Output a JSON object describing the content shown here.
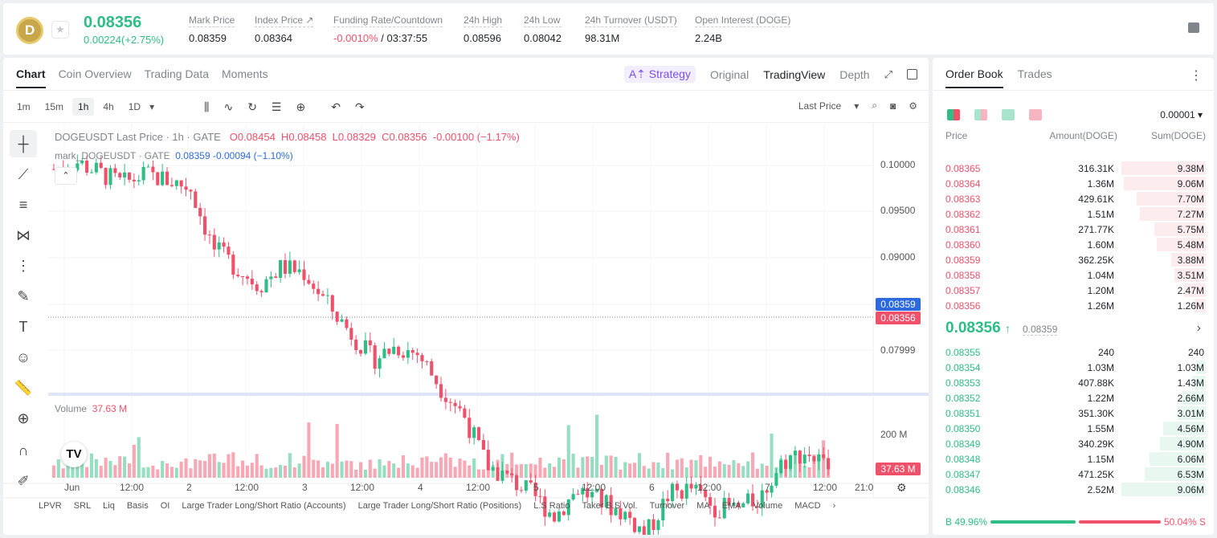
{
  "ticker": {
    "last_price": "0.08356",
    "change": "0.00224(+2.75%)",
    "stats": [
      {
        "label": "Mark Price",
        "value": "0.08359"
      },
      {
        "label": "Index Price ↗",
        "value": "0.08364"
      },
      {
        "label": "Funding Rate/Countdown",
        "value_red": "-0.0010%",
        "value": " / 03:37:55"
      },
      {
        "label": "24h High",
        "value": "0.08596"
      },
      {
        "label": "24h Low",
        "value": "0.08042"
      },
      {
        "label": "24h Turnover (USDT)",
        "value": "98.31M"
      },
      {
        "label": "Open Interest (DOGE)",
        "value": "2.24B"
      }
    ]
  },
  "chart_tabs": [
    "Chart",
    "Coin Overview",
    "Trading Data",
    "Moments"
  ],
  "view_tabs": {
    "strategy": "A⇡ Strategy",
    "original": "Original",
    "tradingview": "TradingView",
    "depth": "Depth"
  },
  "intervals": [
    "1m",
    "15m",
    "1h",
    "4h",
    "1D"
  ],
  "price_type": "Last Price",
  "legend": {
    "symbol": "DOGEUSDT Last Price · 1h · GATE",
    "o": "O0.08454",
    "h": "H0.08458",
    "l": "L0.08329",
    "c": "C0.08356",
    "chg": "-0.00100 (−1.17%)",
    "mark_label": "mark_DOGEUSDT · GATE",
    "mark_values": "0.08359  -0.00094  (−1.10%)"
  },
  "price_axis": [
    "0.10000",
    "0.09500",
    "0.09000",
    "0.07999"
  ],
  "tags": {
    "mark": "0.08359",
    "last": "0.08356",
    "volume": "37.63 M"
  },
  "volume": {
    "label": "Volume",
    "value": "37.63 M",
    "axis": "200 M"
  },
  "time_axis": [
    "Jun",
    "12:00",
    "2",
    "12:00",
    "3",
    "12:00",
    "4",
    "12:00",
    "5",
    "12:00",
    "6",
    "12:00",
    "7",
    "12:00",
    "21:0"
  ],
  "indicators": [
    "LPVR",
    "SRL",
    "Liq",
    "Basis",
    "OI",
    "Large Trader Long/Short Ratio (Accounts)",
    "Large Trader Long/Short Ratio (Positions)",
    "L.S Ratio",
    "Taker B.S Vol.",
    "Turnover",
    "MA",
    "EMA",
    "Volume",
    "MACD"
  ],
  "tv_logo": "TV",
  "order_book": {
    "tabs": [
      "Order Book",
      "Trades"
    ],
    "precision": "0.00001",
    "columns": {
      "price": "Price",
      "amount": "Amount(DOGE)",
      "sum": "Sum(DOGE)"
    },
    "asks": [
      {
        "price": "0.08365",
        "amount": "316.31K",
        "sum": "9.38M",
        "depth": 1.0
      },
      {
        "price": "0.08364",
        "amount": "1.36M",
        "sum": "9.06M",
        "depth": 0.97
      },
      {
        "price": "0.08363",
        "amount": "429.61K",
        "sum": "7.70M",
        "depth": 0.82
      },
      {
        "price": "0.08362",
        "amount": "1.51M",
        "sum": "7.27M",
        "depth": 0.78
      },
      {
        "price": "0.08361",
        "amount": "271.77K",
        "sum": "5.75M",
        "depth": 0.61
      },
      {
        "price": "0.08360",
        "amount": "1.60M",
        "sum": "5.48M",
        "depth": 0.58
      },
      {
        "price": "0.08359",
        "amount": "362.25K",
        "sum": "3.88M",
        "depth": 0.41
      },
      {
        "price": "0.08358",
        "amount": "1.04M",
        "sum": "3.51M",
        "depth": 0.37
      },
      {
        "price": "0.08357",
        "amount": "1.20M",
        "sum": "2.47M",
        "depth": 0.26
      },
      {
        "price": "0.08356",
        "amount": "1.26M",
        "sum": "1.26M",
        "depth": 0.13
      }
    ],
    "mid": {
      "price": "0.08356",
      "arrow": "↑",
      "mark": "0.08359"
    },
    "bids": [
      {
        "price": "0.08355",
        "amount": "240",
        "sum": "240",
        "depth": 0.0
      },
      {
        "price": "0.08354",
        "amount": "1.03M",
        "sum": "1.03M",
        "depth": 0.11
      },
      {
        "price": "0.08353",
        "amount": "407.88K",
        "sum": "1.43M",
        "depth": 0.16
      },
      {
        "price": "0.08352",
        "amount": "1.22M",
        "sum": "2.66M",
        "depth": 0.29
      },
      {
        "price": "0.08351",
        "amount": "351.30K",
        "sum": "3.01M",
        "depth": 0.33
      },
      {
        "price": "0.08350",
        "amount": "1.55M",
        "sum": "4.56M",
        "depth": 0.5
      },
      {
        "price": "0.08349",
        "amount": "340.29K",
        "sum": "4.90M",
        "depth": 0.54
      },
      {
        "price": "0.08348",
        "amount": "1.15M",
        "sum": "6.06M",
        "depth": 0.67
      },
      {
        "price": "0.08347",
        "amount": "471.25K",
        "sum": "6.53M",
        "depth": 0.72
      },
      {
        "price": "0.08346",
        "amount": "2.52M",
        "sum": "9.06M",
        "depth": 1.0
      }
    ],
    "buy_ratio": "B  49.96%",
    "sell_ratio": "50.04%  S"
  },
  "colors": {
    "up": "#2ebd85",
    "down": "#f0516a",
    "mark": "#2d6adf"
  },
  "chart_data": {
    "type": "candlestick",
    "price_path": [
      0.0998,
      0.1002,
      0.0996,
      0.099,
      0.0995,
      0.0992,
      0.0988,
      0.0955,
      0.0945,
      0.0935,
      0.0945,
      0.0942,
      0.0925,
      0.091,
      0.0895,
      0.0902,
      0.0898,
      0.088,
      0.0865,
      0.0838,
      0.083,
      0.0822,
      0.081,
      0.0825,
      0.0818,
      0.0812,
      0.08,
      0.0822,
      0.0825,
      0.0815,
      0.0814,
      0.082,
      0.084,
      0.0845,
      0.0836
    ]
  }
}
